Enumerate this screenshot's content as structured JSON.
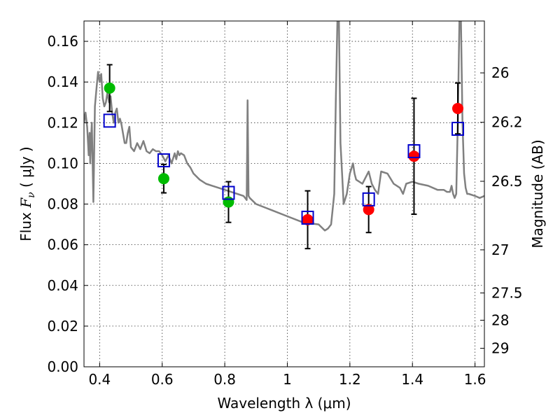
{
  "chart_data": {
    "type": "scatter",
    "xlabel": "Wavelength  λ (μm)",
    "ylabel": "Flux  F_ν  ( μJy )",
    "ylabel_parts": {
      "pre": "Flux  ",
      "var": "F",
      "sub": "ν",
      "post": "  ( μJy )"
    },
    "right_ylabel": "Magnitude (AB)",
    "xlim": [
      0.35,
      1.63
    ],
    "ylim": [
      0.0,
      0.17
    ],
    "x_ticks": [
      0.4,
      0.6,
      0.8,
      1.0,
      1.2,
      1.4,
      1.6
    ],
    "x_tick_labels": [
      "0.4",
      "0.6",
      "0.8",
      "1",
      "1.2",
      "1.4",
      "1.6"
    ],
    "y_ticks": [
      0.0,
      0.02,
      0.04,
      0.06,
      0.08,
      0.1,
      0.12,
      0.14,
      0.16
    ],
    "y_tick_labels": [
      "0.00",
      "0.02",
      "0.04",
      "0.06",
      "0.08",
      "0.10",
      "0.12",
      "0.14",
      "0.16"
    ],
    "right_ticks": [
      {
        "label": "26",
        "flux": 0.1445
      },
      {
        "label": "26.2",
        "flux": 0.1202
      },
      {
        "label": "26.5",
        "flux": 0.0912
      },
      {
        "label": "27",
        "flux": 0.0575
      },
      {
        "label": "27.5",
        "flux": 0.0363
      },
      {
        "label": "28",
        "flux": 0.0229
      },
      {
        "label": "29",
        "flux": 0.0091
      }
    ],
    "grid": true,
    "series": [
      {
        "marker": "line",
        "color": "#808080",
        "x": [
          0.35,
          0.355,
          0.36,
          0.363,
          0.365,
          0.368,
          0.37,
          0.372,
          0.375,
          0.38,
          0.382,
          0.385,
          0.39,
          0.395,
          0.4,
          0.405,
          0.41,
          0.415,
          0.42,
          0.425,
          0.43,
          0.435,
          0.44,
          0.445,
          0.45,
          0.455,
          0.46,
          0.465,
          0.47,
          0.48,
          0.485,
          0.49,
          0.495,
          0.5,
          0.51,
          0.52,
          0.53,
          0.54,
          0.55,
          0.56,
          0.57,
          0.58,
          0.59,
          0.6,
          0.61,
          0.62,
          0.63,
          0.64,
          0.645,
          0.65,
          0.655,
          0.66,
          0.67,
          0.68,
          0.69,
          0.7,
          0.72,
          0.74,
          0.76,
          0.78,
          0.8,
          0.82,
          0.84,
          0.86,
          0.87,
          0.873,
          0.876,
          0.88,
          0.9,
          0.95,
          1.0,
          1.05,
          1.1,
          1.12,
          1.13,
          1.14,
          1.15,
          1.155,
          1.16,
          1.165,
          1.17,
          1.175,
          1.18,
          1.19,
          1.2,
          1.21,
          1.215,
          1.22,
          1.24,
          1.26,
          1.27,
          1.28,
          1.29,
          1.3,
          1.32,
          1.34,
          1.36,
          1.37,
          1.38,
          1.4,
          1.42,
          1.45,
          1.48,
          1.5,
          1.51,
          1.52,
          1.525,
          1.53,
          1.535,
          1.54,
          1.545,
          1.55,
          1.555,
          1.56,
          1.565,
          1.57,
          1.575,
          1.58,
          1.6,
          1.615,
          1.63
        ],
        "y": [
          0.12,
          0.125,
          0.118,
          0.11,
          0.104,
          0.115,
          0.1,
          0.11,
          0.12,
          0.081,
          0.1,
          0.128,
          0.137,
          0.145,
          0.14,
          0.144,
          0.132,
          0.128,
          0.13,
          0.135,
          0.13,
          0.133,
          0.125,
          0.12,
          0.125,
          0.127,
          0.12,
          0.122,
          0.119,
          0.11,
          0.11,
          0.115,
          0.118,
          0.108,
          0.106,
          0.11,
          0.107,
          0.111,
          0.106,
          0.105,
          0.107,
          0.106,
          0.106,
          0.104,
          0.101,
          0.104,
          0.1,
          0.105,
          0.102,
          0.106,
          0.104,
          0.105,
          0.104,
          0.1,
          0.098,
          0.095,
          0.092,
          0.09,
          0.089,
          0.088,
          0.087,
          0.086,
          0.085,
          0.084,
          0.082,
          0.131,
          0.084,
          0.083,
          0.08,
          0.077,
          0.074,
          0.071,
          0.07,
          0.067,
          0.068,
          0.07,
          0.085,
          0.13,
          0.17,
          0.17,
          0.11,
          0.095,
          0.08,
          0.085,
          0.095,
          0.1,
          0.095,
          0.092,
          0.09,
          0.096,
          0.09,
          0.087,
          0.085,
          0.096,
          0.095,
          0.09,
          0.088,
          0.085,
          0.09,
          0.091,
          0.09,
          0.089,
          0.087,
          0.087,
          0.086,
          0.086,
          0.089,
          0.085,
          0.083,
          0.085,
          0.12,
          0.17,
          0.17,
          0.12,
          0.095,
          0.088,
          0.085,
          0.085,
          0.084,
          0.083,
          0.084
        ]
      },
      {
        "marker": "filled-circle",
        "color": "#00bb00",
        "x": [
          0.432,
          0.605,
          0.812
        ],
        "y": [
          0.137,
          0.0925,
          0.081
        ],
        "yerr": [
          0.0115,
          0.007,
          0.01
        ]
      },
      {
        "marker": "filled-circle",
        "color": "#ff0000",
        "x": [
          1.065,
          1.26,
          1.405,
          1.545
        ],
        "y": [
          0.0723,
          0.0773,
          0.1035,
          0.127
        ],
        "yerr": [
          0.0142,
          0.0113,
          0.0285,
          0.0125
        ]
      },
      {
        "marker": "open-square",
        "color": "#0000cc",
        "x": [
          0.432,
          0.605,
          0.812,
          1.065,
          1.26,
          1.405,
          1.545
        ],
        "y": [
          0.121,
          0.1015,
          0.0855,
          0.0733,
          0.0823,
          0.106,
          0.117
        ]
      }
    ]
  }
}
